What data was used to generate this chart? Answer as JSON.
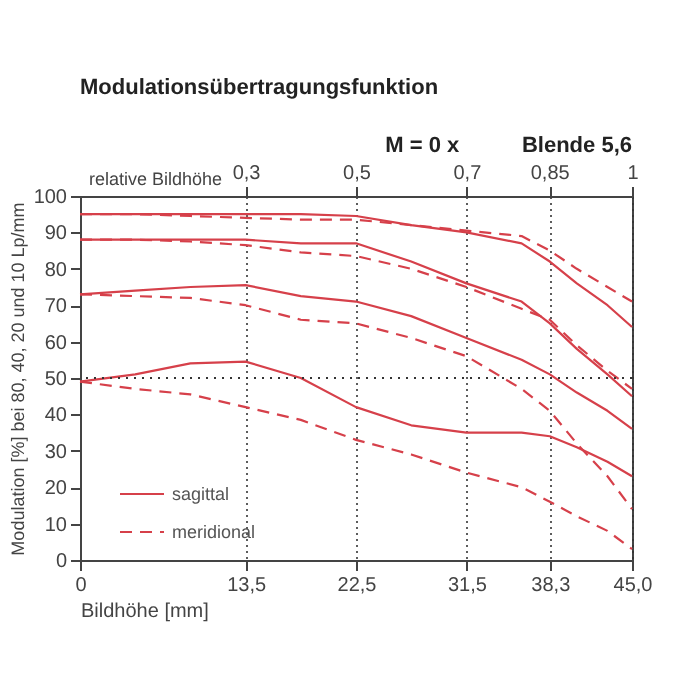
{
  "chart_data": {
    "type": "line",
    "title": "Modulationsübertragungsfunktion",
    "annotations": [
      "M = 0 x",
      "Blende 5,6"
    ],
    "xlabel": "Bildhöhe [mm]",
    "ylabel": "Modulation [%] bei 80, 40, 20 und 10 Lp/mm",
    "x2label": "relative Bildhöhe",
    "x": [
      0,
      4.5,
      9,
      13.5,
      18,
      22.5,
      27,
      31.5,
      36,
      38.3,
      40.5,
      43,
      45
    ],
    "series": [
      {
        "name": "sagittal",
        "color": "#d6404a",
        "line_style": "solid",
        "values": [
          95,
          95,
          95,
          95,
          95,
          94.5,
          92,
          90,
          87,
          82,
          76,
          70,
          64
        ]
      },
      {
        "name": "meridional",
        "color": "#d6404a",
        "line_style": "dashed",
        "values": [
          95,
          95,
          94.5,
          94,
          93.5,
          93.5,
          92,
          90.5,
          89,
          85,
          80,
          75,
          71
        ]
      },
      {
        "color": "#d6404a",
        "line_style": "solid",
        "values": [
          88,
          88,
          88,
          88,
          87,
          87,
          82,
          76,
          71,
          65,
          58,
          51,
          45
        ]
      },
      {
        "color": "#d6404a",
        "line_style": "dashed",
        "values": [
          88,
          88,
          87.5,
          86.5,
          84.5,
          83.5,
          80,
          75,
          69,
          66,
          59,
          52,
          47
        ]
      },
      {
        "color": "#d6404a",
        "line_style": "solid",
        "values": [
          73,
          74,
          75,
          75.5,
          72.5,
          71,
          67,
          61,
          55,
          51,
          46,
          41,
          36
        ]
      },
      {
        "color": "#d6404a",
        "line_style": "dashed",
        "values": [
          73,
          72.5,
          72,
          70,
          66,
          65,
          61,
          56,
          47,
          41,
          32,
          23,
          14
        ]
      },
      {
        "color": "#d6404a",
        "line_style": "solid",
        "values": [
          49,
          51,
          54,
          54.5,
          50,
          42,
          37,
          35,
          35,
          34,
          31,
          27,
          23
        ]
      },
      {
        "color": "#d6404a",
        "line_style": "dashed",
        "values": [
          49,
          47,
          45.5,
          42,
          38.5,
          33,
          29,
          24,
          20,
          16,
          12,
          8,
          3
        ]
      }
    ],
    "xlim": [
      0,
      45
    ],
    "ylim": [
      0,
      100
    ],
    "xticks": [
      0,
      {
        "value": 13.5,
        "label": "13,5"
      },
      {
        "value": 22.5,
        "label": "22,5"
      },
      {
        "value": 31.5,
        "label": "31,5"
      },
      {
        "value": 38.3,
        "label": "38,3"
      },
      {
        "value": 45,
        "label": "45,0"
      }
    ],
    "yticks": [
      0,
      10,
      20,
      30,
      40,
      50,
      60,
      70,
      80,
      90,
      100
    ],
    "x2lim": [
      0,
      1
    ],
    "x2ticks": [
      {
        "value": 0.3,
        "label": "0,3"
      },
      {
        "value": 0.5,
        "label": "0,5"
      },
      {
        "value": 0.7,
        "label": "0,7"
      },
      {
        "value": 0.85,
        "label": "0,85"
      },
      1
    ],
    "ref_lines": [
      {
        "axis": "y",
        "value": 50,
        "line_style": "dotted"
      }
    ],
    "grid": "x",
    "legend": "bottom left",
    "marker": "none"
  }
}
